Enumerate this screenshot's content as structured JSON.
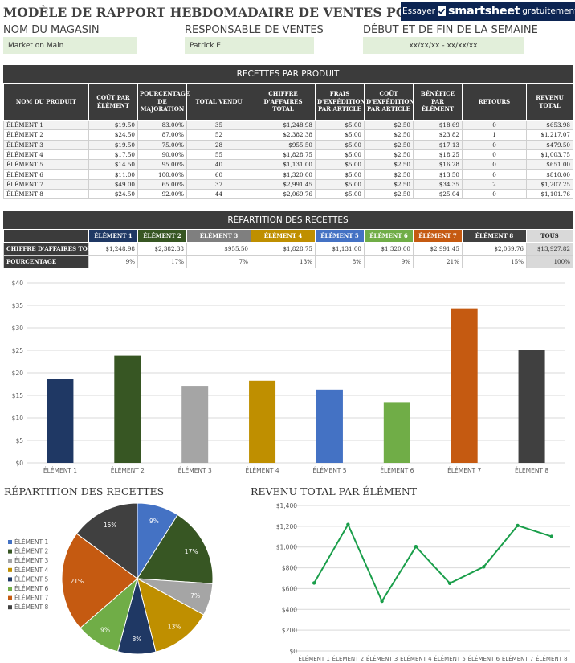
{
  "title": "MODÈLE DE RAPPORT HEBDOMADAIRE DE VENTES POUR DÉTAIL",
  "promo": {
    "try": "Essayer",
    "brand": "smartsheet",
    "free": "gratuitement."
  },
  "header": {
    "store_label": "NOM DU MAGASIN",
    "store_value": "Market on Main",
    "manager_label": "RESPONSABLE DE VENTES",
    "manager_value": "Patrick E.",
    "week_label": "DÉBUT ET DE FIN DE LA SEMAINE",
    "week_value": "xx/xx/xx - xx/xx/xx"
  },
  "product_table": {
    "title": "RECETTES PAR PRODUIT",
    "columns": [
      "NOM DU PRODUIT",
      "COÛT PAR ÉLÉMENT",
      "POURCENTAGE DE MAJORATION",
      "TOTAL VENDU",
      "CHIFFRE D'AFFAIRES TOTAL",
      "FRAIS D'EXPÉDITION PAR ARTICLE",
      "COÛT D'EXPÉDITION PAR ARTICLE",
      "BÉNÉFICE PAR ÉLÉMENT",
      "RETOURS",
      "REVENU TOTAL"
    ],
    "rows": [
      [
        "ÉLÉMENT 1",
        "$19.50",
        "83.00%",
        "35",
        "$1,248.98",
        "$5.00",
        "$2.50",
        "$18.69",
        "0",
        "$653.98"
      ],
      [
        "ÉLÉMENT 2",
        "$24.50",
        "87.00%",
        "52",
        "$2,382.38",
        "$5.00",
        "$2.50",
        "$23.82",
        "1",
        "$1,217.07"
      ],
      [
        "ÉLÉMENT 3",
        "$19.50",
        "75.00%",
        "28",
        "$955.50",
        "$5.00",
        "$2.50",
        "$17.13",
        "0",
        "$479.50"
      ],
      [
        "ÉLÉMENT 4",
        "$17.50",
        "90.00%",
        "55",
        "$1,828.75",
        "$5.00",
        "$2.50",
        "$18.25",
        "0",
        "$1,003.75"
      ],
      [
        "ÉLÉMENT 5",
        "$14.50",
        "95.00%",
        "40",
        "$1,131.00",
        "$5.00",
        "$2.50",
        "$16.28",
        "0",
        "$651.00"
      ],
      [
        "ÉLÉMENT 6",
        "$11.00",
        "100.00%",
        "60",
        "$1,320.00",
        "$5.00",
        "$2.50",
        "$13.50",
        "0",
        "$810.00"
      ],
      [
        "ÉLÉMENT 7",
        "$49.00",
        "65.00%",
        "37",
        "$2,991.45",
        "$5.00",
        "$2.50",
        "$34.35",
        "2",
        "$1,207.25"
      ],
      [
        "ÉLÉMENT 8",
        "$24.50",
        "92.00%",
        "44",
        "$2,069.76",
        "$5.00",
        "$2.50",
        "$25.04",
        "0",
        "$1,101.76"
      ]
    ]
  },
  "breakdown_table": {
    "title": "RÉPARTITION DES RECETTES",
    "headers": [
      "ÉLÉMENT 1",
      "ÉLÉMENT 2",
      "ÉLÉMENT 3",
      "ÉLÉMENT 4",
      "ÉLÉMENT 5",
      "ÉLÉMENT 6",
      "ÉLÉMENT 7",
      "ÉLÉMENT 8",
      "TOUS"
    ],
    "header_colors": [
      "#1f3864",
      "#375623",
      "#7f7f7f",
      "#bf8f00",
      "#4472c4",
      "#70ad47",
      "#c55a11",
      "#404040",
      "#d9d9d9"
    ],
    "row_labels": [
      "CHIFFRE D'AFFAIRES TOTAL",
      "POURCENTAGE"
    ],
    "revenue": [
      "$1,248.98",
      "$2,382.38",
      "$955.50",
      "$1,828.75",
      "$1,131.00",
      "$1,320.00",
      "$2,991.45",
      "$2,069.76",
      "$13,927.82"
    ],
    "percent": [
      "9%",
      "17%",
      "7%",
      "13%",
      "8%",
      "9%",
      "21%",
      "15%",
      "100%"
    ]
  },
  "pie_title": "RÉPARTITION DES RECETTES",
  "line_title": "REVENU TOTAL PAR ÉLÉMENT",
  "chart_data": [
    {
      "type": "bar",
      "categories": [
        "ÉLÉMENT 1",
        "ÉLÉMENT 2",
        "ÉLÉMENT 3",
        "ÉLÉMENT 4",
        "ÉLÉMENT 5",
        "ÉLÉMENT 6",
        "ÉLÉMENT 7",
        "ÉLÉMENT 8"
      ],
      "values": [
        18.69,
        23.82,
        17.13,
        18.25,
        16.28,
        13.5,
        34.35,
        25.04
      ],
      "colors": [
        "#1f3864",
        "#375623",
        "#a5a5a5",
        "#bf8f00",
        "#4472c4",
        "#70ad47",
        "#c55a11",
        "#404040"
      ],
      "yticks": [
        "$0",
        "$5",
        "$10",
        "$15",
        "$20",
        "$25",
        "$30",
        "$35",
        "$40"
      ],
      "ylim": [
        0,
        40
      ],
      "grid": true
    },
    {
      "type": "pie",
      "title": "RÉPARTITION DES RECETTES",
      "labels": [
        "ÉLÉMENT 1",
        "ÉLÉMENT 2",
        "ÉLÉMENT 3",
        "ÉLÉMENT 4",
        "ÉLÉMENT 5",
        "ÉLÉMENT 6",
        "ÉLÉMENT 7",
        "ÉLÉMENT 8"
      ],
      "values": [
        1248.98,
        2382.38,
        955.5,
        1828.75,
        1131.0,
        1320.0,
        2991.45,
        2069.76
      ],
      "pct_labels": [
        "9%",
        "17%",
        "7%",
        "13%",
        "8%",
        "9%",
        "21%",
        "15%"
      ],
      "colors": [
        "#4472c4",
        "#375623",
        "#a5a5a5",
        "#bf8f00",
        "#1f3864",
        "#70ad47",
        "#c55a11",
        "#404040"
      ],
      "legend": "left"
    },
    {
      "type": "line",
      "title": "REVENU TOTAL PAR ÉLÉMENT",
      "categories": [
        "ÉLÉMENT 1",
        "ÉLÉMENT 2",
        "ÉLÉMENT 3",
        "ÉLÉMENT 4",
        "ÉLÉMENT 5",
        "ÉLÉMENT 6",
        "ÉLÉMENT 7",
        "ÉLÉMENT 8"
      ],
      "values": [
        653.98,
        1217.07,
        479.5,
        1003.75,
        651.0,
        810.0,
        1207.25,
        1101.76
      ],
      "color": "#1a9e4a",
      "yticks": [
        "$0",
        "$200",
        "$400",
        "$600",
        "$800",
        "$1,000",
        "$1,200",
        "$1,400"
      ],
      "ylim": [
        0,
        1400
      ],
      "grid": true
    }
  ]
}
